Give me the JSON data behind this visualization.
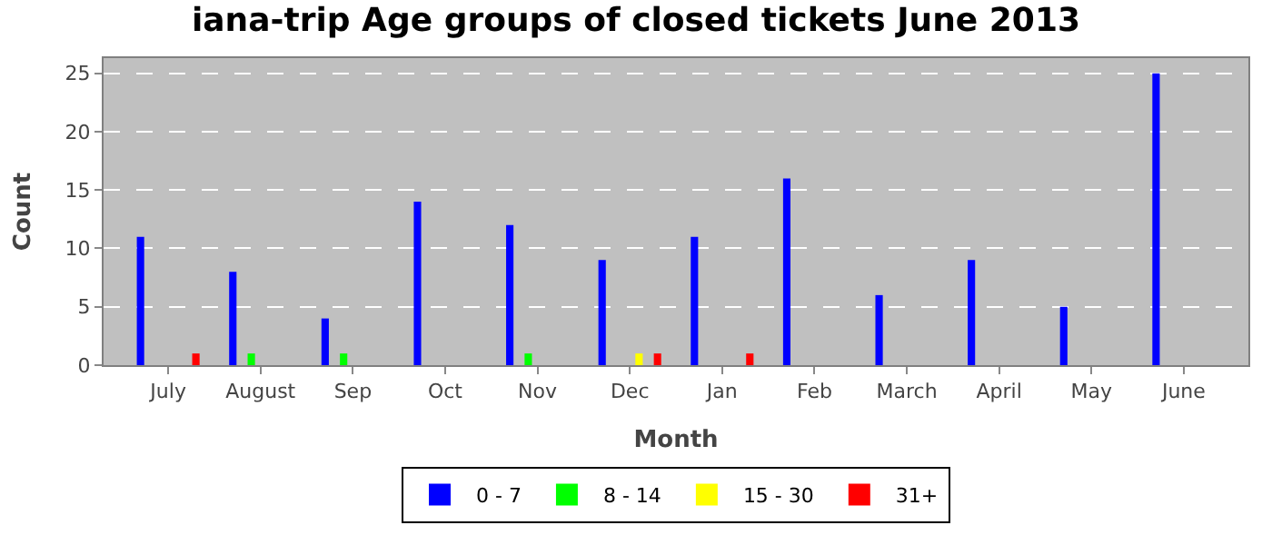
{
  "chart_data": {
    "type": "bar",
    "title": "iana-trip Age groups of closed tickets June 2013",
    "xlabel": "Month",
    "ylabel": "Count",
    "categories": [
      "July",
      "August",
      "Sep",
      "Oct",
      "Nov",
      "Dec",
      "Jan",
      "Feb",
      "March",
      "April",
      "May",
      "June"
    ],
    "series": [
      {
        "name": "0 - 7",
        "color": "#0000ff",
        "values": [
          11,
          8,
          4,
          14,
          12,
          9,
          11,
          16,
          6,
          9,
          5,
          25
        ]
      },
      {
        "name": "8 - 14",
        "color": "#00ff00",
        "values": [
          0,
          1,
          1,
          0,
          1,
          0,
          0,
          0,
          0,
          0,
          0,
          0
        ]
      },
      {
        "name": "15 - 30",
        "color": "#ffff00",
        "values": [
          0,
          0,
          0,
          0,
          0,
          1,
          0,
          0,
          0,
          0,
          0,
          0
        ]
      },
      {
        "name": "31+",
        "color": "#ff0000",
        "values": [
          1,
          0,
          0,
          0,
          0,
          1,
          1,
          0,
          0,
          0,
          0,
          0
        ]
      }
    ],
    "ylim": [
      0,
      26.3
    ],
    "yticks": [
      0,
      5,
      10,
      15,
      20,
      25
    ],
    "grid": "y",
    "legend": "bottom"
  }
}
